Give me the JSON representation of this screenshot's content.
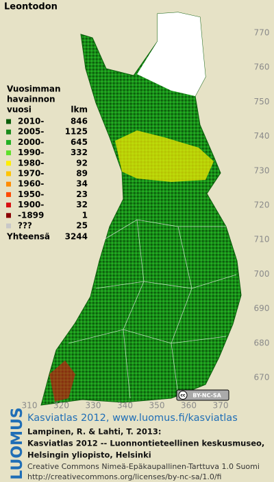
{
  "title": "Leontodon",
  "legend": {
    "heading": [
      "Vuosimman",
      "havainnon",
      "vuosi"
    ],
    "count_heading": "lkm",
    "items": [
      {
        "label": "2010-",
        "count": 846,
        "color": "#0b5e0b"
      },
      {
        "label": "2005-",
        "count": 1125,
        "color": "#1a8a1a"
      },
      {
        "label": "2000-",
        "count": 645,
        "color": "#22b022"
      },
      {
        "label": "1990-",
        "count": 332,
        "color": "#5ee02a"
      },
      {
        "label": "1980-",
        "count": 92,
        "color": "#ffee00"
      },
      {
        "label": "1970-",
        "count": 89,
        "color": "#ffc400"
      },
      {
        "label": "1960-",
        "count": 34,
        "color": "#ff8c00"
      },
      {
        "label": "1950-",
        "count": 23,
        "color": "#ff4a00"
      },
      {
        "label": "1900-",
        "count": 32,
        "color": "#d81010"
      },
      {
        "label": "-1899",
        "count": 1,
        "color": "#8a0000"
      },
      {
        "label": "???",
        "count": 25,
        "color": "#c8c8c8"
      }
    ],
    "total_label": "Yhteensä",
    "total": 3244
  },
  "x_ticks": [
    310,
    320,
    330,
    340,
    350,
    360,
    370
  ],
  "y_ticks": [
    670,
    680,
    690,
    700,
    710,
    720,
    730,
    740,
    750,
    760,
    770
  ],
  "cc_badge": "BY-NC-SA",
  "brand": "LUOMUS",
  "footer": {
    "link": "Kasviatlas 2012, www.luomus.fi/kasviatlas",
    "citation": [
      "Lampinen, R. & Lahti, T. 2013:",
      "Kasviatlas 2012 -- Luonnontieteellinen keskusmuseo,",
      "Helsingin yliopisto, Helsinki"
    ],
    "license": "Creative Commons Nimeä-Epäkaupallinen-Tarttuva 1.0 Suomi",
    "license_url": "http://creativecommons.org/licenses/by-nc-sa/1.0/fi"
  }
}
